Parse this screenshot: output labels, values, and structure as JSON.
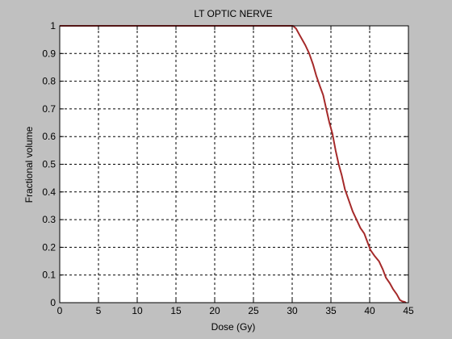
{
  "chart_data": {
    "type": "line",
    "title": "LT OPTIC NERVE",
    "xlabel": "Dose (Gy)",
    "ylabel": "Fractional volume",
    "xlim": [
      0,
      45
    ],
    "ylim": [
      0,
      1
    ],
    "xticks": [
      0,
      5,
      10,
      15,
      20,
      25,
      30,
      35,
      40,
      45
    ],
    "yticks": [
      0,
      0.1,
      0.2,
      0.3,
      0.4,
      0.5,
      0.6,
      0.7,
      0.8,
      0.9,
      1
    ],
    "grid": true,
    "colors": {
      "figure_bg": "#c0c0c0",
      "plot_bg": "#ffffff",
      "line": "#a52a2a"
    },
    "series": [
      {
        "x": [
          0,
          30.1,
          30.5,
          30.9,
          31.3,
          31.7,
          32.2,
          32.7,
          33.1,
          33.6,
          34.0,
          34.4,
          34.8,
          35.2,
          35.6,
          36.0,
          36.4,
          36.8,
          37.3,
          37.8,
          38.3,
          38.8,
          39.3,
          39.7,
          40.1,
          40.6,
          41.2,
          41.7,
          42.1,
          42.6,
          43.0,
          43.5,
          43.9,
          44.2,
          44.5,
          44.7
        ],
        "y": [
          1,
          1,
          0.99,
          0.97,
          0.95,
          0.93,
          0.9,
          0.86,
          0.82,
          0.78,
          0.75,
          0.7,
          0.65,
          0.61,
          0.55,
          0.5,
          0.46,
          0.41,
          0.37,
          0.33,
          0.3,
          0.27,
          0.25,
          0.22,
          0.19,
          0.17,
          0.15,
          0.12,
          0.09,
          0.07,
          0.05,
          0.03,
          0.01,
          0.005,
          0.003,
          0
        ]
      }
    ]
  }
}
